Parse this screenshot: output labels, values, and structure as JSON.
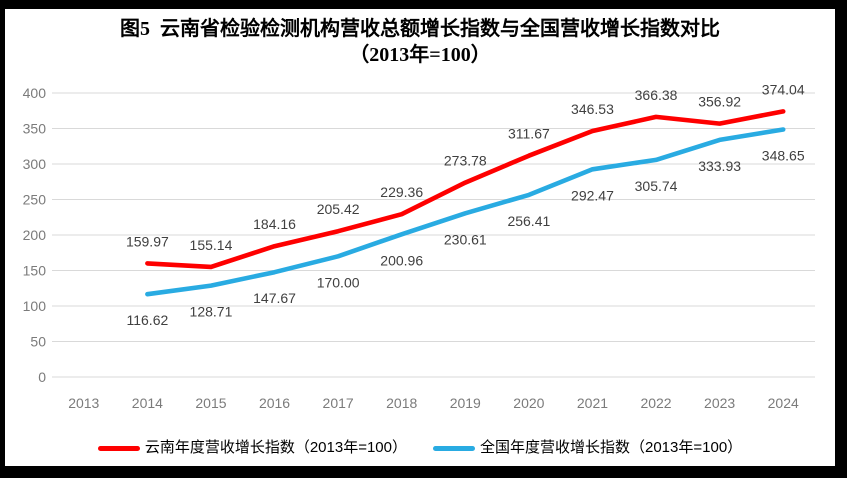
{
  "title": {
    "line1": "图5  云南省检验检测机构营收总额增长指数与全国营收增长指数对比",
    "line2": "（2013年=100）"
  },
  "legend": [
    {
      "label": "云南年度营收增长指数（2013年=100）",
      "color": "#FE0000"
    },
    {
      "label": "全国年度营收增长指数（2013年=100）",
      "color": "#29ABE2"
    }
  ],
  "chart_data": {
    "type": "line",
    "title": "图5 云南省检验检测机构营收总额增长指数与全国营收增长指数对比（2013年=100）",
    "categories": [
      "2013",
      "2014",
      "2015",
      "2016",
      "2017",
      "2018",
      "2019",
      "2020",
      "2021",
      "2022",
      "2023",
      "2024"
    ],
    "series": [
      {
        "name": "云南年度营收增长指数（2013年=100）",
        "color": "#FE0000",
        "start_category": "2014",
        "label_position": "above",
        "values": [
          159.97,
          155.14,
          184.16,
          205.42,
          229.36,
          273.78,
          311.67,
          346.53,
          366.38,
          356.92,
          374.04
        ]
      },
      {
        "name": "全国年度营收增长指数（2013年=100）",
        "color": "#29ABE2",
        "start_category": "2014",
        "label_position": "below",
        "values": [
          116.62,
          128.71,
          147.67,
          170.0,
          200.96,
          230.61,
          256.41,
          292.47,
          305.74,
          333.93,
          348.65
        ]
      }
    ],
    "ylim": [
      0,
      400
    ],
    "ytick_step": 50,
    "xlabel": "",
    "ylabel": "",
    "grid": "horizontal",
    "legend_position": "bottom",
    "label_decimals": 2
  },
  "colors": {
    "grid": "#D9D9D9",
    "axis_text": "#7B7B7B",
    "data_label": "#404040",
    "frame": "#000000",
    "background": "#FFFFFF"
  }
}
